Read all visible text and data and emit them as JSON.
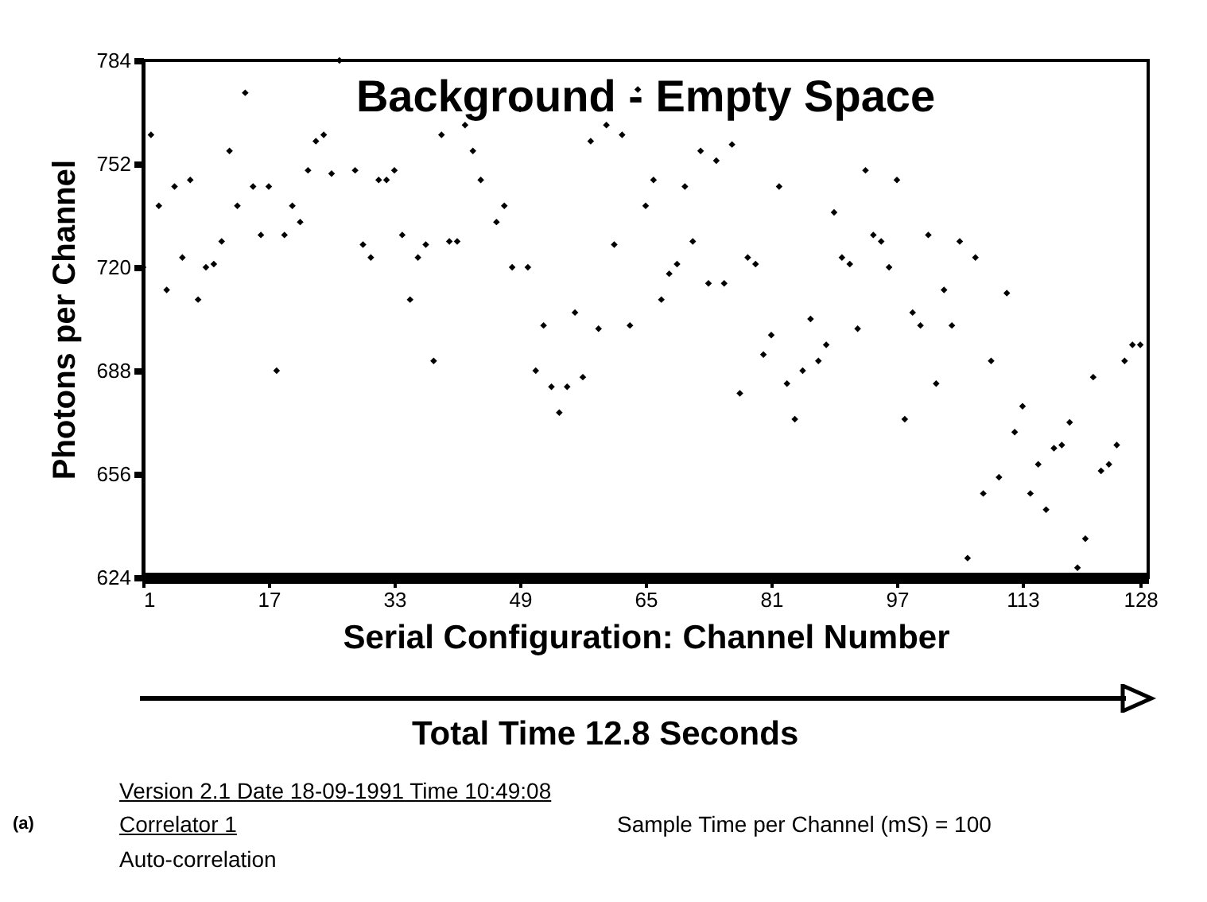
{
  "chart_data": {
    "type": "scatter",
    "title": "Background - Empty Space",
    "xlabel": "Serial Configuration: Channel Number",
    "ylabel": "Photons per Channel",
    "x": [
      1,
      2,
      3,
      4,
      5,
      6,
      7,
      8,
      9,
      10,
      11,
      12,
      13,
      14,
      15,
      16,
      17,
      18,
      19,
      20,
      21,
      22,
      23,
      24,
      25,
      26,
      28,
      29,
      30,
      31,
      32,
      33,
      34,
      35,
      36,
      37,
      38,
      39,
      40,
      41,
      42,
      43,
      44,
      46,
      47,
      48,
      49,
      50,
      51,
      52,
      53,
      54,
      55,
      56,
      57,
      58,
      59,
      60,
      61,
      62,
      63,
      64,
      65,
      66,
      67,
      68,
      69,
      70,
      71,
      72,
      73,
      74,
      75,
      76,
      77,
      78,
      79,
      80,
      81,
      82,
      83,
      84,
      85,
      86,
      87,
      88,
      89,
      90,
      91,
      92,
      93,
      94,
      95,
      96,
      97,
      98,
      99,
      100,
      101,
      102,
      103,
      104,
      105,
      106,
      107,
      108,
      109,
      110,
      111,
      112,
      113,
      114,
      115,
      116,
      117,
      118,
      119,
      120,
      121,
      122,
      123,
      124,
      125,
      126,
      127,
      128
    ],
    "series": [
      {
        "color": "#000000",
        "values": [
          720,
          761,
          739,
          713,
          745,
          723,
          747,
          710,
          720,
          721,
          728,
          756,
          739,
          774,
          745,
          730,
          745,
          688,
          730,
          739,
          734,
          750,
          759,
          761,
          749,
          784,
          750,
          727,
          723,
          747,
          747,
          750,
          730,
          710,
          723,
          727,
          691,
          761,
          728,
          728,
          764,
          756,
          747,
          734,
          739,
          720,
          769,
          720,
          688,
          702,
          683,
          675,
          683,
          706,
          686,
          759,
          701,
          764,
          727,
          761,
          702,
          775,
          739,
          747,
          710,
          718,
          721,
          745,
          728,
          756,
          715,
          753,
          715,
          758,
          681,
          723,
          721,
          693,
          699,
          745,
          684,
          673,
          688,
          704,
          691,
          696,
          737,
          723,
          721,
          701,
          750,
          730,
          728,
          720,
          747,
          673,
          706,
          702,
          730,
          684,
          713,
          702,
          728,
          630,
          723,
          650,
          691,
          655,
          712,
          669,
          677,
          650,
          659,
          645,
          664,
          665,
          672,
          627,
          636,
          686,
          657,
          659,
          665,
          691,
          696,
          696
        ]
      }
    ],
    "xlim": [
      1,
      129
    ],
    "xticks": [
      1,
      17,
      33,
      49,
      65,
      81,
      97,
      113,
      128
    ],
    "ylim": [
      624,
      784
    ],
    "yticks": [
      624,
      656,
      688,
      720,
      752,
      784
    ],
    "marker": "diamond",
    "annotations": [
      "Total Time 12.8  Seconds",
      "Version 2.1  Date 18-09-1991  Time 10:49:08",
      "Correlator 1",
      "Sample Time per Channel  (mS) =  100",
      "Auto-correlation",
      "(a)"
    ]
  }
}
